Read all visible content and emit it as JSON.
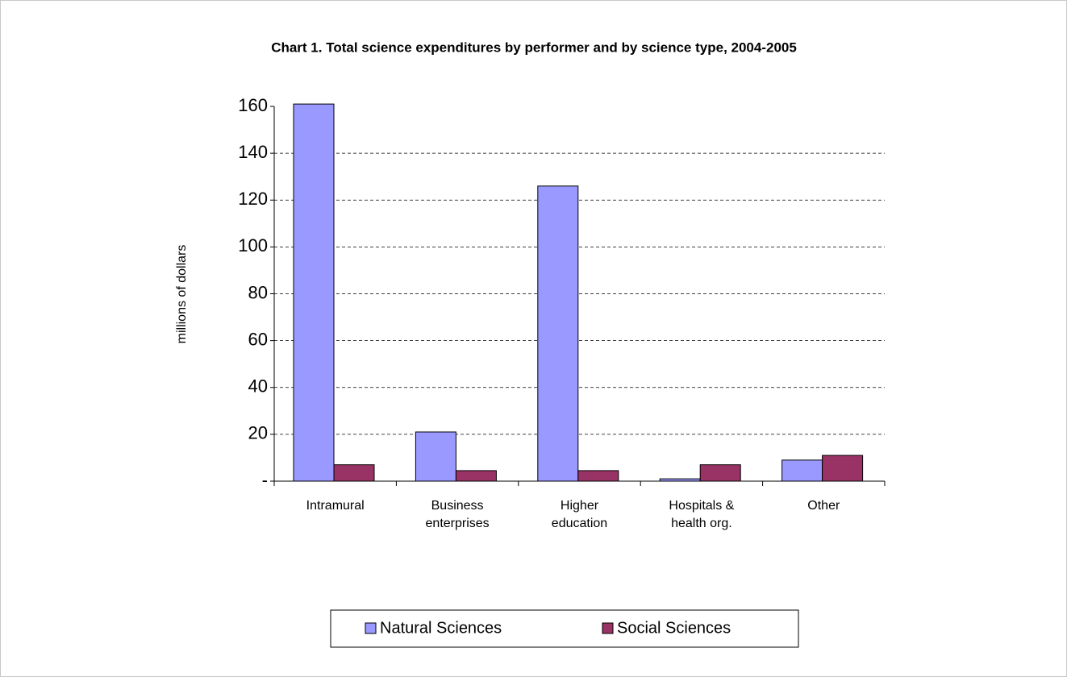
{
  "chart_data": {
    "type": "bar",
    "title": "Chart 1. Total science expenditures by performer and by science type, 2004-2005",
    "y_label": "millions of dollars",
    "categories": [
      "Intramural",
      "Business enterprises",
      "Higher education",
      "Hospitals & health org.",
      "Other"
    ],
    "series": [
      {
        "name": "Natural Sciences",
        "color": "#9999ff",
        "values": [
          161,
          21,
          126,
          1,
          9
        ]
      },
      {
        "name": "Social Sciences",
        "color": "#993366",
        "values": [
          7,
          4.5,
          4.5,
          7,
          11
        ]
      }
    ],
    "ylim": [
      0,
      160
    ],
    "yticks": [
      {
        "value": 0,
        "label": "-"
      },
      20,
      40,
      60,
      80,
      100,
      120,
      140,
      160
    ],
    "grid": true,
    "legend": "bottom"
  }
}
